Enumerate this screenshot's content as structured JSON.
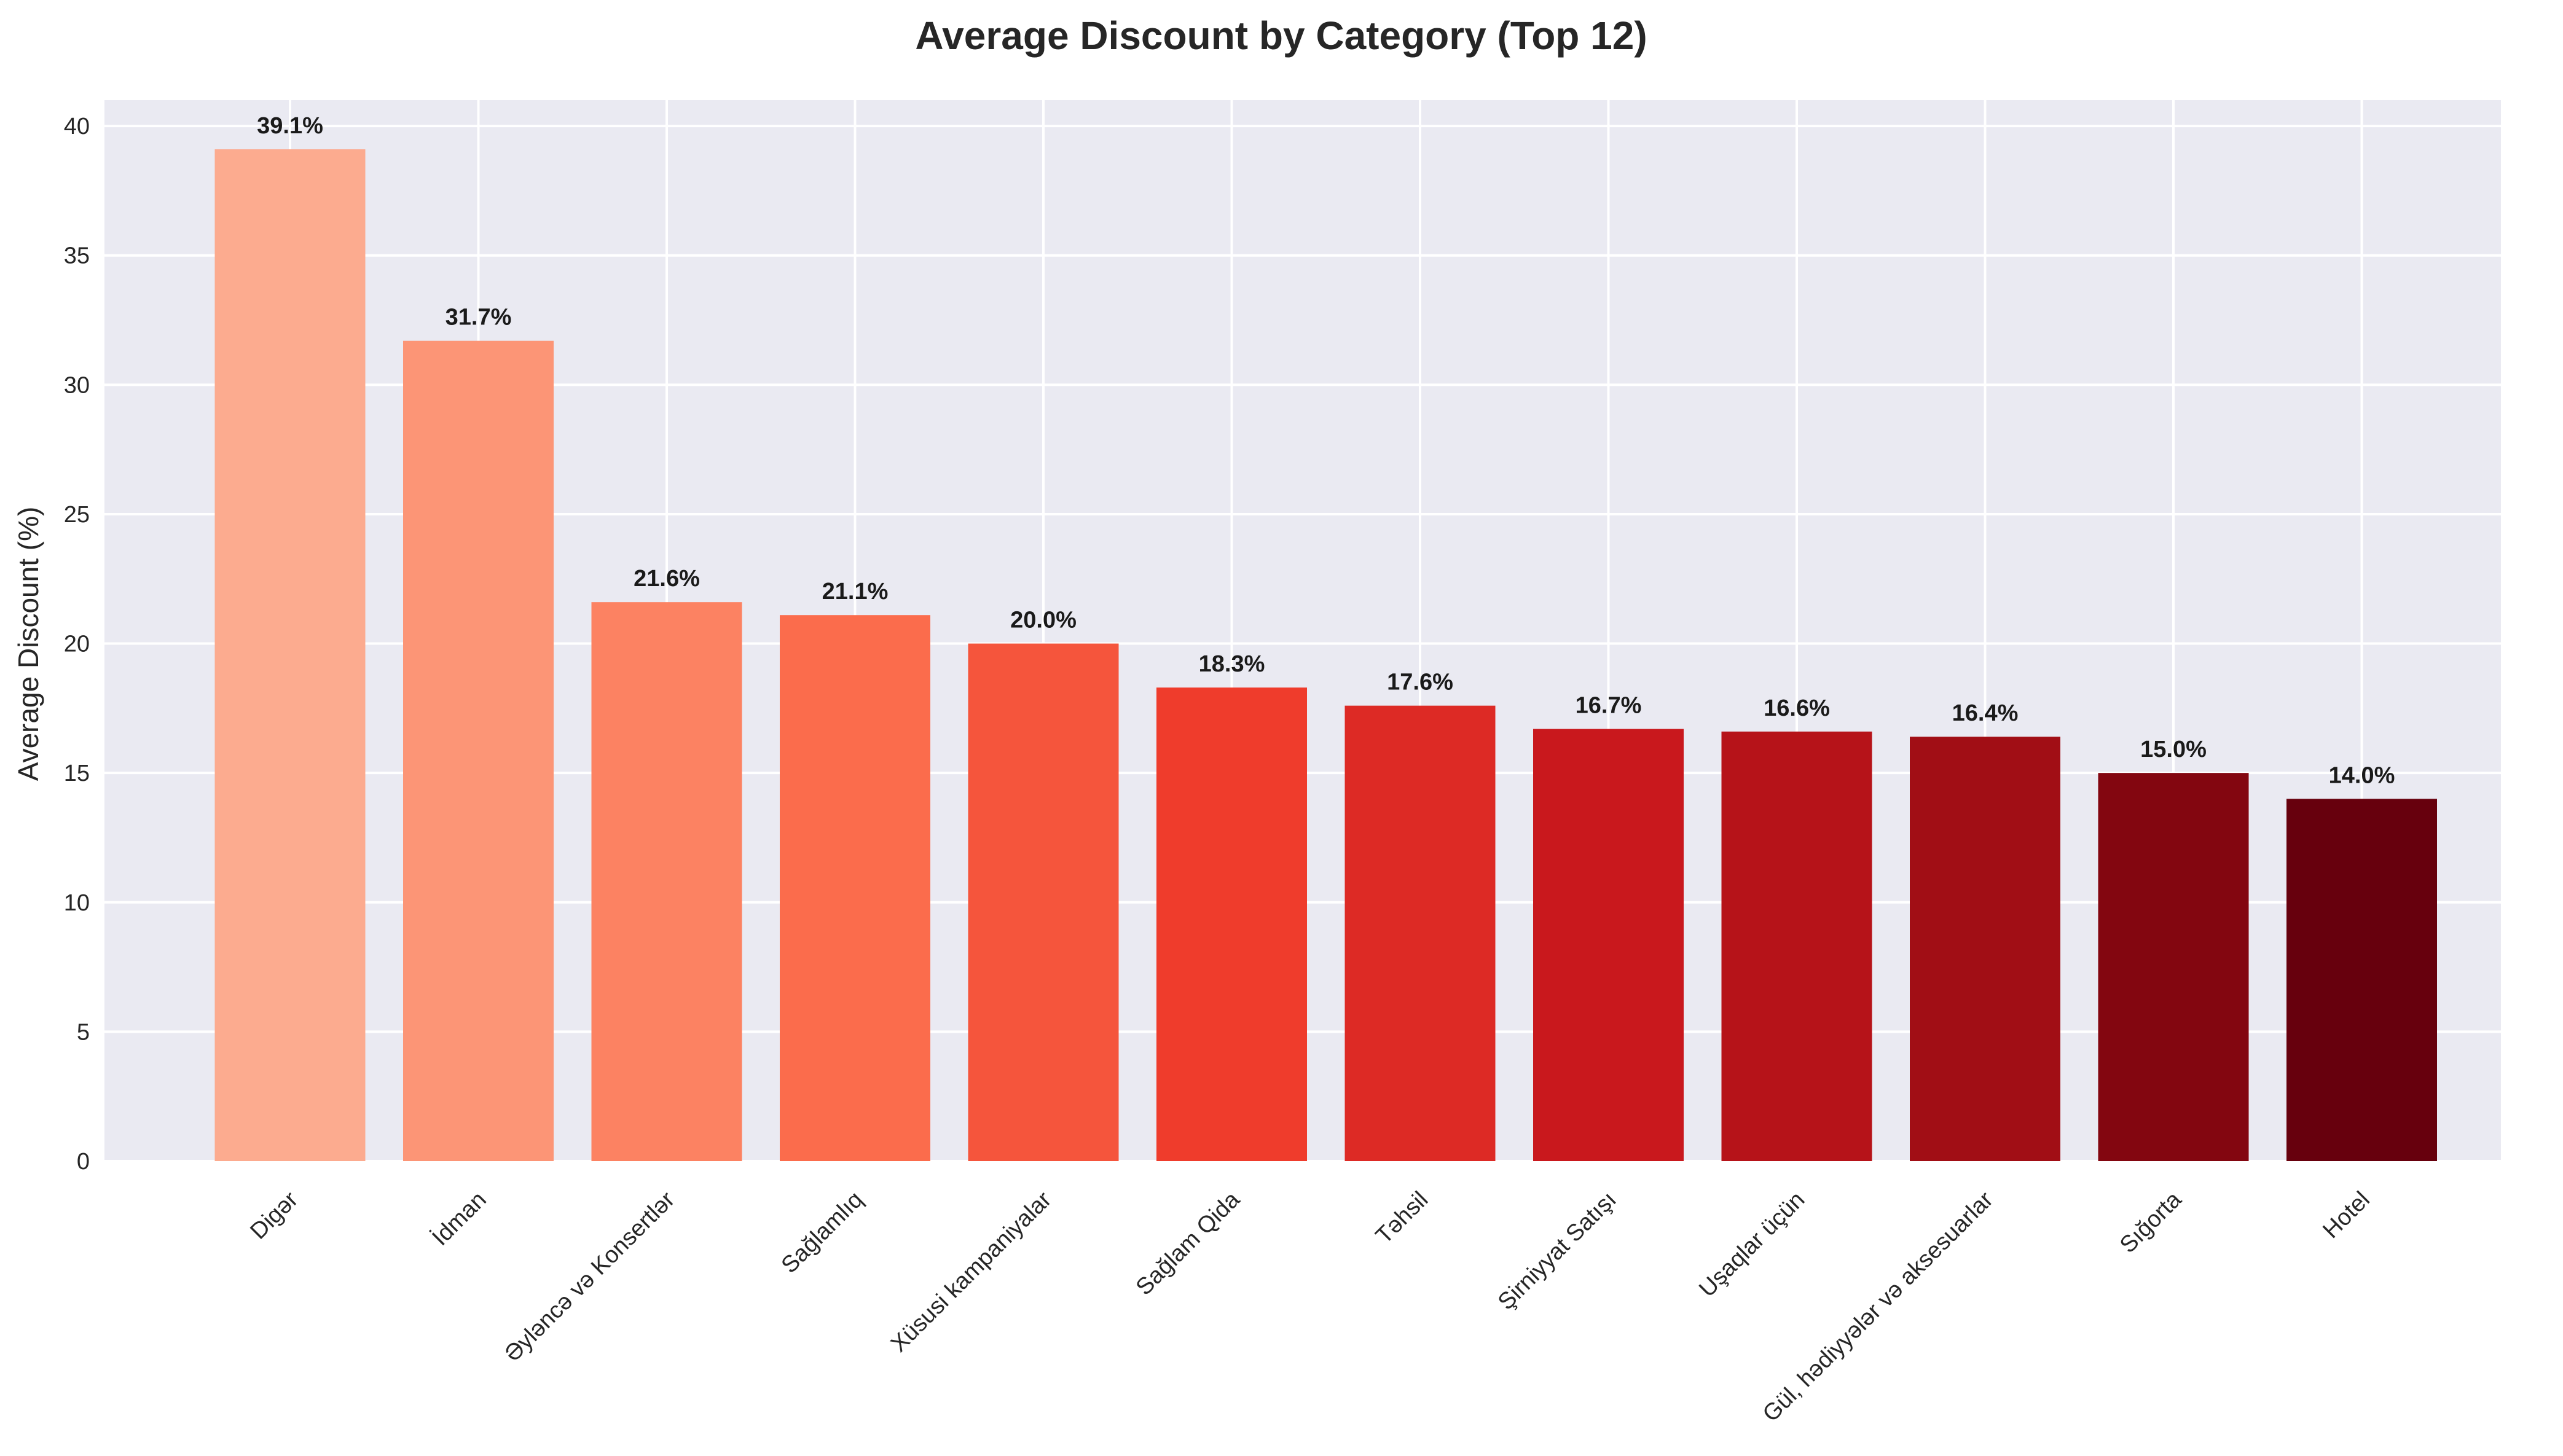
{
  "chart_data": {
    "type": "bar",
    "title": "Average Discount by Category (Top 12)",
    "xlabel": "",
    "ylabel": "Average Discount (%)",
    "ylim": [
      0,
      41
    ],
    "yticks": [
      0,
      5,
      10,
      15,
      20,
      25,
      30,
      35,
      40
    ],
    "grid": true,
    "categories": [
      "Digər",
      "İdman",
      "Əyləncə və Konsertlər",
      "Sağlamlıq",
      "Xüsusi kampaniyalar",
      "Sağlam Qida",
      "Təhsil",
      "Şirniyyat Satışı",
      "Uşaqlar üçün",
      "Gül, hədiyyələr və aksesuarlar",
      "Sığorta",
      "Hotel"
    ],
    "values": [
      39.1,
      31.7,
      21.6,
      21.1,
      20.0,
      18.3,
      17.6,
      16.7,
      16.6,
      16.4,
      15.0,
      14.0
    ],
    "value_labels": [
      "39.1%",
      "31.7%",
      "21.6%",
      "21.1%",
      "20.0%",
      "18.3%",
      "17.6%",
      "16.7%",
      "16.6%",
      "16.4%",
      "15.0%",
      "14.0%"
    ],
    "colors": [
      "#fcab8f",
      "#fc9576",
      "#fc8262",
      "#fb6c4c",
      "#f5553c",
      "#ef3c2c",
      "#dd2a25",
      "#c9181d",
      "#b61319",
      "#a10e15",
      "#830610",
      "#67000d"
    ],
    "style": {
      "background": "#eaeaf2",
      "grid_color": "#ffffff",
      "text_color": "#262626"
    }
  }
}
